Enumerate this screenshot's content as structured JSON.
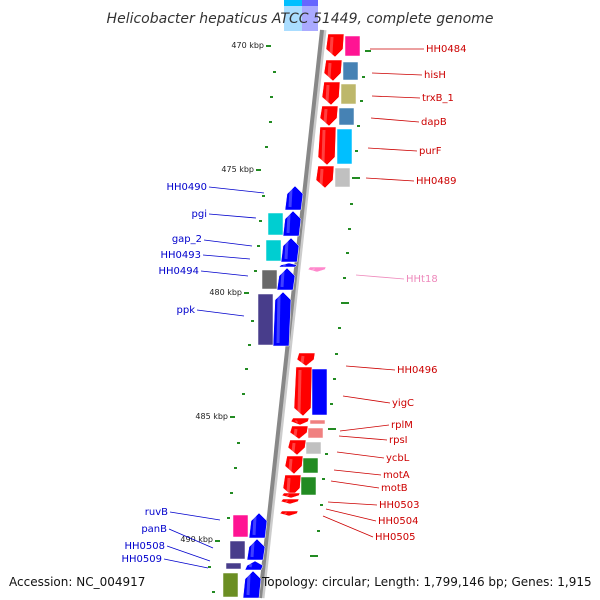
{
  "title": "Helicobacter hepaticus ATCC 51449, complete genome",
  "footer": {
    "accession": "Accession: NC_004917",
    "topology": "Topology: circular; Length: 1,799,146 bp; Genes: 1,915"
  },
  "kbp_ticks": [
    {
      "label": "470 kbp"
    },
    {
      "label": "475 kbp"
    },
    {
      "label": "480 kbp"
    },
    {
      "label": "485 kbp"
    },
    {
      "label": "490 kbp"
    }
  ],
  "genes": [
    {
      "label": "HH0484",
      "strand": "-",
      "color": "#ff0000",
      "cog_color": "#ff1493"
    },
    {
      "label": "hisH",
      "strand": "-",
      "color": "#ff0000",
      "cog_color": "#4682b4"
    },
    {
      "label": "trxB_1",
      "strand": "-",
      "color": "#ff0000",
      "cog_color": "#bdb76b"
    },
    {
      "label": "dapB",
      "strand": "-",
      "color": "#ff0000",
      "cog_color": "#4682b4"
    },
    {
      "label": "purF",
      "strand": "-",
      "color": "#ff0000",
      "cog_color": "#00bfff"
    },
    {
      "label": "HH0489",
      "strand": "-",
      "color": "#ff0000",
      "cog_color": "#c0c0c0"
    },
    {
      "label": "HH0490",
      "strand": "+",
      "color": "#0000ff",
      "cog_color": ""
    },
    {
      "label": "pgi",
      "strand": "+",
      "color": "#0000ff",
      "cog_color": "#00ced1"
    },
    {
      "label": "gap_2",
      "strand": "+",
      "color": "#0000ff",
      "cog_color": "#00ced1"
    },
    {
      "label": "HH0493",
      "strand": "+",
      "color": "#0000ff",
      "cog_color": ""
    },
    {
      "label": "HH0494",
      "strand": "+",
      "color": "#0000ff",
      "cog_color": "#696969"
    },
    {
      "label": "ppk",
      "strand": "+",
      "color": "#0000ff",
      "cog_color": "#483d8b"
    },
    {
      "label": "HHt18",
      "strand": "-",
      "color": "#ff88cc",
      "cog_color": ""
    },
    {
      "label": "HH0496",
      "strand": "-",
      "color": "#ff0000",
      "cog_color": ""
    },
    {
      "label": "yigC",
      "strand": "-",
      "color": "#ff0000",
      "cog_color": "#0000ff"
    },
    {
      "label": "rplM",
      "strand": "-",
      "color": "#ff0000",
      "cog_color": "#f08080"
    },
    {
      "label": "rpsI",
      "strand": "-",
      "color": "#ff0000",
      "cog_color": "#f08080"
    },
    {
      "label": "ycbL",
      "strand": "-",
      "color": "#ff0000",
      "cog_color": "#c0c0c0"
    },
    {
      "label": "motA",
      "strand": "-",
      "color": "#ff0000",
      "cog_color": "#228b22"
    },
    {
      "label": "motB",
      "strand": "-",
      "color": "#ff0000",
      "cog_color": "#228b22"
    },
    {
      "label": "HH0503",
      "strand": "-",
      "color": "#ff0000",
      "cog_color": ""
    },
    {
      "label": "HH0504",
      "strand": "-",
      "color": "#ff0000",
      "cog_color": ""
    },
    {
      "label": "HH0505",
      "strand": "-",
      "color": "#ff0000",
      "cog_color": ""
    },
    {
      "label": "ruvB",
      "strand": "+",
      "color": "#0000ff",
      "cog_color": "#ff1493"
    },
    {
      "label": "panB",
      "strand": "+",
      "color": "#0000ff",
      "cog_color": "#483d8b"
    },
    {
      "label": "HH0508",
      "strand": "+",
      "color": "#0000ff",
      "cog_color": "#483d8b"
    },
    {
      "label": "HH0509",
      "strand": "+",
      "color": "#0000ff",
      "cog_color": "#6b8e23"
    }
  ],
  "colors": {
    "backbone": "#888888",
    "plus_label": "#0000cc",
    "minus_label": "#cc0000",
    "rna_label": "#ee88bb",
    "gc_tick": "#228b22"
  }
}
